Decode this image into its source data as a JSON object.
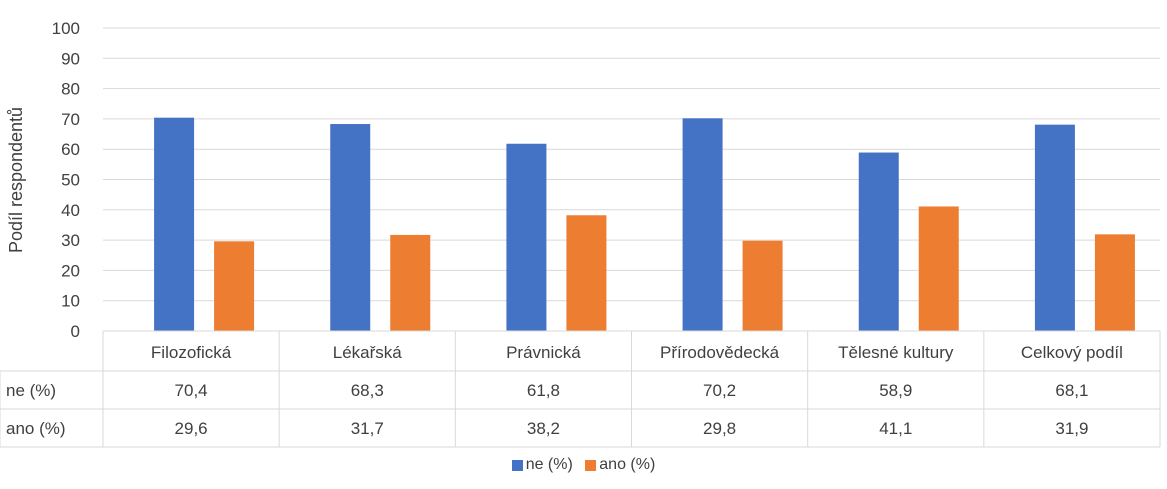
{
  "chart_data": {
    "type": "bar",
    "title": "",
    "xlabel": "",
    "ylabel": "Podíl respondentů",
    "ylim": [
      0,
      100
    ],
    "yticks": [
      0,
      10,
      20,
      30,
      40,
      50,
      60,
      70,
      80,
      90,
      100
    ],
    "grid": true,
    "legend_position": "bottom",
    "categories": [
      "Filozofická",
      "Lékařská",
      "Právnická",
      "Přírodovědecká",
      "Tělesné kultury",
      "Celkový podíl"
    ],
    "series": [
      {
        "name": "ne (%)",
        "color": "#4472C4",
        "values": [
          70.4,
          68.3,
          61.8,
          70.2,
          58.9,
          68.1
        ],
        "labels": [
          "70,4",
          "68,3",
          "61,8",
          "70,2",
          "58,9",
          "68,1"
        ]
      },
      {
        "name": "ano (%)",
        "color": "#ED7D31",
        "values": [
          29.6,
          31.7,
          38.2,
          29.8,
          41.1,
          31.9
        ],
        "labels": [
          "29,6",
          "31,7",
          "38,2",
          "29,8",
          "41,1",
          "31,9"
        ]
      }
    ]
  }
}
